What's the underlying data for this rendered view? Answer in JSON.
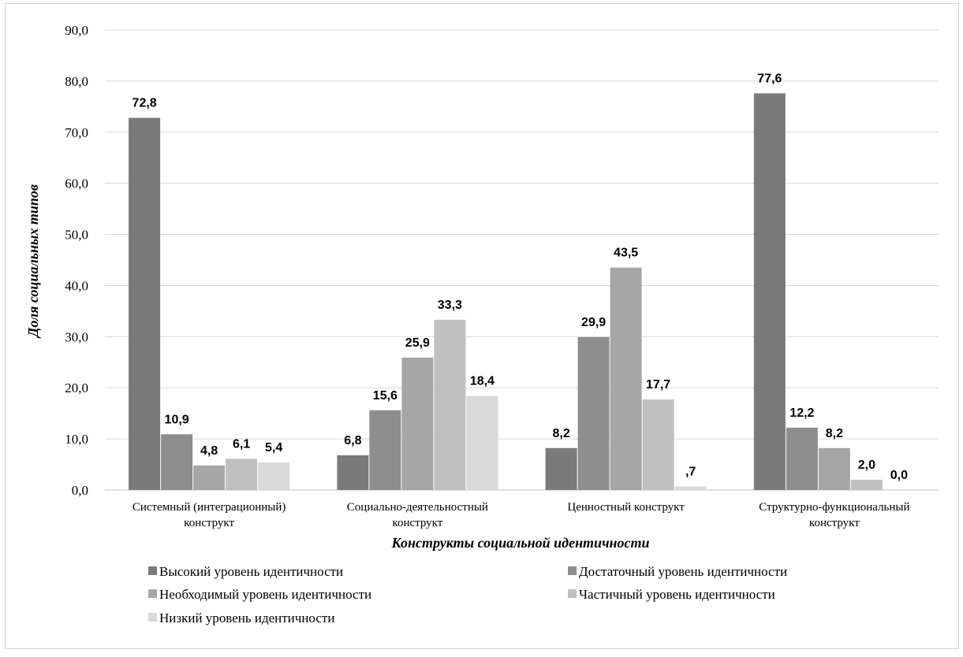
{
  "chart_data": {
    "type": "bar",
    "title": "",
    "xlabel": "Конструкты социальной идентичности",
    "ylabel": "Доля социальных типов",
    "ylim": [
      0,
      90
    ],
    "yticks": [
      "0,0",
      "10,0",
      "20,0",
      "30,0",
      "40,0",
      "50,0",
      "60,0",
      "70,0",
      "80,0",
      "90,0"
    ],
    "grid": true,
    "legend_position": "bottom",
    "categories": [
      [
        "Системный (интеграционный)",
        "конструкт"
      ],
      [
        "Социально-деятельностный",
        "конструкт"
      ],
      [
        "Ценностный конструкт"
      ],
      [
        "Структурно-функциональный",
        "конструкт"
      ]
    ],
    "series": [
      {
        "name": "Высокий уровень идентичности",
        "color": "#7a7a7a",
        "values": [
          72.8,
          6.8,
          8.2,
          77.6
        ],
        "labels": [
          "72,8",
          "6,8",
          "8,2",
          "77,6"
        ]
      },
      {
        "name": "Достаточный уровень идентичности",
        "color": "#8e8e8e",
        "values": [
          10.9,
          15.6,
          29.9,
          12.2
        ],
        "labels": [
          "10,9",
          "15,6",
          "29,9",
          "12,2"
        ]
      },
      {
        "name": "Необходимый уровень идентичности",
        "color": "#a6a6a6",
        "values": [
          4.8,
          25.9,
          43.5,
          8.2
        ],
        "labels": [
          "4,8",
          "25,9",
          "43,5",
          "8,2"
        ]
      },
      {
        "name": "Частичный уровень идентичности",
        "color": "#c0c0c0",
        "values": [
          6.1,
          33.3,
          17.7,
          2.0
        ],
        "labels": [
          "6,1",
          "33,3",
          "17,7",
          "2,0"
        ]
      },
      {
        "name": "Низкий уровень идентичности",
        "color": "#d9d9d9",
        "values": [
          5.4,
          18.4,
          0.7,
          0.0
        ],
        "labels": [
          "5,4",
          "18,4",
          ",7",
          "0,0"
        ]
      }
    ]
  }
}
